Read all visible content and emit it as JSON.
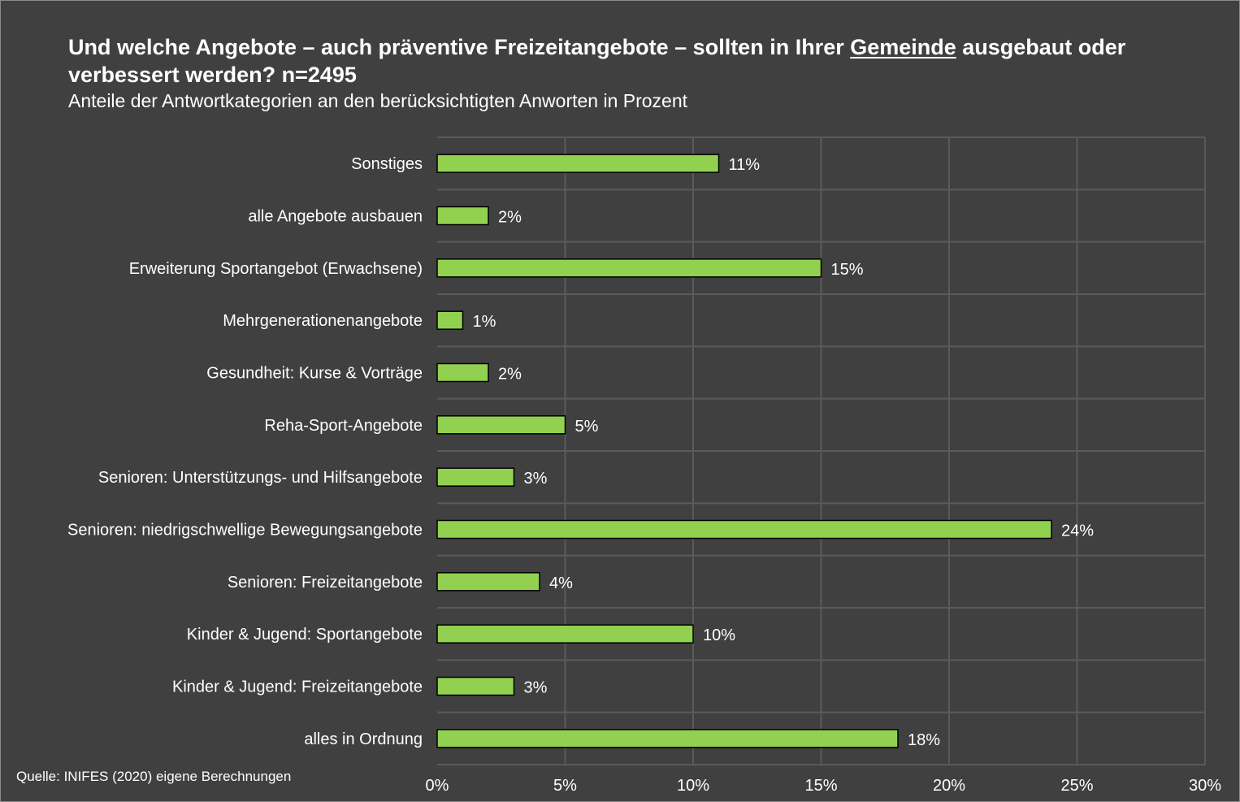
{
  "title": {
    "part1": "Und welche Angebote – auch präventive Freizeitangebote – sollten in Ihrer ",
    "underlined": "Gemeinde",
    "part2": " ausgebaut oder verbessert werden? n=2495"
  },
  "subtitle": "Anteile der Antwortkategorien an den berücksichtigten Anworten in Prozent",
  "source": "Quelle: INIFES (2020) eigene Berechnungen",
  "colors": {
    "background": "#404040",
    "bar": "#92d050",
    "bar_border": "#000000",
    "grid": "#5a5a5a",
    "text": "#ffffff"
  },
  "chart_data": {
    "type": "bar",
    "orientation": "horizontal",
    "categories": [
      "Sonstiges",
      "alle Angebote ausbauen",
      "Erweiterung Sportangebot (Erwachsene)",
      "Mehrgenerationenangebote",
      "Gesundheit: Kurse & Vorträge",
      "Reha-Sport-Angebote",
      "Senioren: Unterstützungs- und Hilfsangebote",
      "Senioren: niedrigschwellige Bewegungsangebote",
      "Senioren: Freizeitangebote",
      "Kinder & Jugend: Sportangebote",
      "Kinder & Jugend: Freizeitangebote",
      "alles in Ordnung"
    ],
    "values": [
      11,
      2,
      15,
      1,
      2,
      5,
      3,
      24,
      4,
      10,
      3,
      18
    ],
    "data_labels": [
      "11%",
      "2%",
      "15%",
      "1%",
      "2%",
      "5%",
      "3%",
      "24%",
      "4%",
      "10%",
      "3%",
      "18%"
    ],
    "xlim": [
      0,
      30
    ],
    "x_ticks": [
      0,
      5,
      10,
      15,
      20,
      25,
      30
    ],
    "x_tick_labels": [
      "0%",
      "5%",
      "10%",
      "15%",
      "20%",
      "25%",
      "30%"
    ],
    "grid": true,
    "legend": "none"
  }
}
